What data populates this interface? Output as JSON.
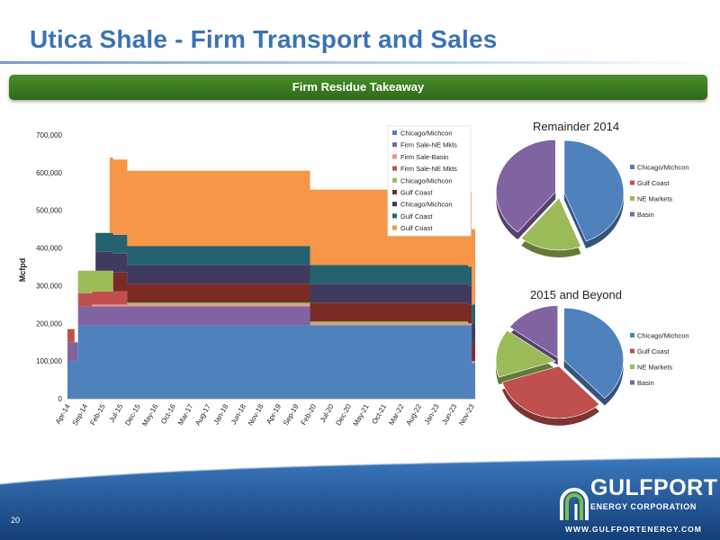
{
  "title": "Utica Shale - Firm Transport and Sales",
  "banner": "Firm Residue Takeaway",
  "slide_number": "20",
  "logo": {
    "name": "GULFPORT",
    "sub": "ENERGY CORPORATION",
    "url": "WWW.GULFPORTENERGY.COM"
  },
  "colors": {
    "title": "#3a73b5",
    "banner": "#3b7d22",
    "footer": "#1f5a9b"
  },
  "chart_data": [
    {
      "type": "area",
      "stacked": true,
      "ylabel": "Mcfpd",
      "xlabel": "",
      "ylim": [
        0,
        700000
      ],
      "yticks": [
        0,
        100000,
        200000,
        300000,
        400000,
        500000,
        600000,
        700000
      ],
      "ytick_labels": [
        "0",
        "100,000",
        "200,000",
        "300,000",
        "400,000",
        "500,000",
        "600,000",
        "700,000"
      ],
      "xtick_labels": [
        "Apr-14",
        "Sep-14",
        "Feb-15",
        "Jul-15",
        "Dec-15",
        "May-16",
        "Oct-16",
        "Mar-17",
        "Aug-17",
        "Jan-18",
        "Jun-18",
        "Nov-18",
        "Apr-19",
        "Sep-19",
        "Feb-20",
        "Jul-20",
        "Dec-20",
        "May-21",
        "Oct-21",
        "Mar-22",
        "Aug-22",
        "Jan-23",
        "Jun-23",
        "Nov-23"
      ],
      "x": [
        "Apr-14",
        "Jun-14",
        "Jul-14",
        "Nov-14",
        "Dec-14",
        "Apr-15",
        "May-15",
        "Jul-15",
        "Sep-15",
        "Dec-15",
        "Mar-16",
        "Apr-16",
        "Dec-19",
        "Jan-20",
        "Oct-23",
        "Nov-23",
        "Dec-23"
      ],
      "series": [
        {
          "name": "Chicago/Michcon",
          "color": "#4f81bd",
          "values": [
            100000,
            100000,
            195000,
            195000,
            195000,
            195000,
            195000,
            195000,
            195000,
            195000,
            195000,
            195000,
            195000,
            195000,
            195000,
            95000,
            95000
          ]
        },
        {
          "name": "Firm Sale-NE Mkts",
          "color": "#8064a2",
          "values": [
            50000,
            50000,
            50000,
            50000,
            50000,
            50000,
            50000,
            50000,
            50000,
            50000,
            50000,
            50000,
            50000,
            0,
            0,
            0,
            0
          ]
        },
        {
          "name": "Firm Sale-Basin",
          "color": "#e98e94",
          "values": [
            0,
            0,
            0,
            5000,
            5000,
            5000,
            5000,
            5000,
            5000,
            5000,
            5000,
            5000,
            5000,
            5000,
            5000,
            5000,
            5000
          ]
        },
        {
          "name": "Firm Sale-NE Mkts",
          "color": "#c0504d",
          "values": [
            35000,
            0,
            35000,
            35000,
            35000,
            35000,
            35000,
            35000,
            0,
            0,
            0,
            0,
            0,
            0,
            0,
            0,
            0
          ]
        },
        {
          "name": "Chicago/Michcon",
          "color": "#9bbb59",
          "values": [
            0,
            0,
            60000,
            55000,
            55000,
            55000,
            0,
            0,
            5000,
            5000,
            5000,
            5000,
            5000,
            5000,
            0,
            0,
            0
          ]
        },
        {
          "name": "Gulf Coast",
          "color": "#7a2b25",
          "values": [
            0,
            0,
            0,
            0,
            0,
            0,
            50000,
            50000,
            50000,
            50000,
            50000,
            50000,
            50000,
            50000,
            50000,
            50000,
            50000
          ]
        },
        {
          "name": "Chicago/Michcon",
          "color": "#3f3b5e",
          "values": [
            0,
            0,
            0,
            0,
            50000,
            50000,
            50000,
            50000,
            50000,
            50000,
            50000,
            50000,
            50000,
            50000,
            50000,
            50000,
            50000
          ]
        },
        {
          "name": "Gulf Coast",
          "color": "#23626e",
          "values": [
            0,
            0,
            0,
            0,
            50000,
            50000,
            50000,
            50000,
            50000,
            50000,
            50000,
            50000,
            50000,
            50000,
            50000,
            50000,
            50000
          ]
        },
        {
          "name": "Gulf Coast",
          "color": "#f79646",
          "values": [
            0,
            0,
            0,
            0,
            0,
            200000,
            200000,
            200000,
            200000,
            200000,
            200000,
            200000,
            200000,
            200000,
            200000,
            200000,
            200000
          ]
        }
      ],
      "legend_labels": [
        "Chicago/Michcon",
        "Firm Sale-NE Mkts",
        "Firm Sale-Basin",
        "Firm Sale-NE Mkts",
        "Chicago/Michcon",
        "Gulf Coast",
        "Chicago/Michcon",
        "Gulf Coast",
        "Gulf Coast"
      ],
      "legend_colors": [
        "#4f81bd",
        "#8064a2",
        "#e98e94",
        "#c0504d",
        "#9bbb59",
        "#7a2b25",
        "#3f3b5e",
        "#23626e",
        "#f79646"
      ],
      "legend_position": "top-right"
    },
    {
      "type": "pie",
      "title": "Remainder 2014",
      "labels": [
        "Chicago/Michcon",
        "Gulf Coast",
        "NE Markets",
        "Basin"
      ],
      "values": [
        44,
        0,
        17,
        39
      ],
      "colors": [
        "#4f81bd",
        "#c0504d",
        "#9bbb59",
        "#8064a2"
      ],
      "legend_position": "right"
    },
    {
      "type": "pie",
      "title": "2015 and Beyond",
      "labels": [
        "Chicago/Michcon",
        "Gulf Coast",
        "NE Markets",
        "Basin"
      ],
      "values": [
        38,
        32,
        15,
        15
      ],
      "colors": [
        "#4f81bd",
        "#c0504d",
        "#9bbb59",
        "#8064a2"
      ],
      "legend_position": "right"
    }
  ]
}
